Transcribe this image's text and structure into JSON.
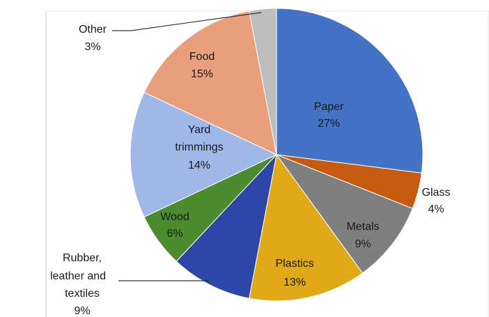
{
  "chart_data": {
    "type": "pie",
    "title": "",
    "slices": [
      {
        "name": "Paper",
        "value": 27,
        "label": "27%",
        "color": "#4472C4"
      },
      {
        "name": "Glass",
        "value": 4,
        "label": "4%",
        "color": "#C55A11"
      },
      {
        "name": "Metals",
        "value": 9,
        "label": "9%",
        "color": "#7F7F7F"
      },
      {
        "name": "Plastics",
        "value": 13,
        "label": "13%",
        "color": "#DFA918"
      },
      {
        "name": "Rubber, leather and textiles",
        "value": 9,
        "label": "9%",
        "color": "#2E46A8"
      },
      {
        "name": "Wood",
        "value": 6,
        "label": "6%",
        "color": "#4D8B2F"
      },
      {
        "name": "Yard trimmings",
        "value": 14,
        "label": "14%",
        "color": "#9FB8E8"
      },
      {
        "name": "Food",
        "value": 15,
        "label": "15%",
        "color": "#E8A07C"
      },
      {
        "name": "Other",
        "value": 3,
        "label": "3%",
        "color": "#BDBDBD"
      }
    ],
    "start_angle_deg": 0,
    "direction": "clockwise"
  },
  "labels": {
    "paper": "Paper",
    "glass": "Glass",
    "metals": "Metals",
    "plastics": "Plastics",
    "rubber_line1": "Rubber,",
    "rubber_line2": "leather and",
    "rubber_line3": "textiles",
    "wood": "Wood",
    "yard_line1": "Yard",
    "yard_line2": "trimmings",
    "food": "Food",
    "other": "Other",
    "pct_paper": "27%",
    "pct_glass": "4%",
    "pct_metals": "9%",
    "pct_plastics": "13%",
    "pct_rubber": "9%",
    "pct_wood": "6%",
    "pct_yard": "14%",
    "pct_food": "15%",
    "pct_other": "3%"
  }
}
